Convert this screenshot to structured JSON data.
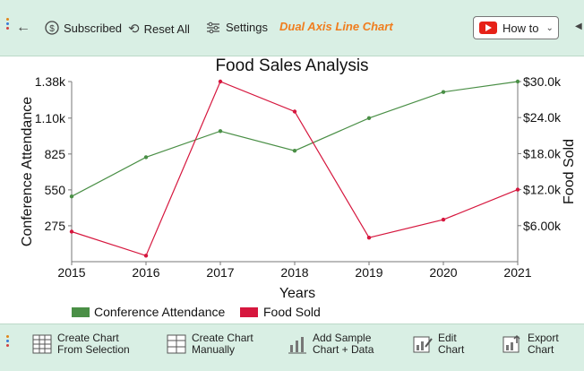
{
  "toolbar": {
    "subscribed_label": "Subscribed",
    "reset_label": "Reset All",
    "settings_label": "Settings",
    "title": "Dual Axis Line Chart",
    "howto_label": "How to"
  },
  "bottom_toolbar": {
    "create_from_selection": [
      "Create Chart",
      "From Selection"
    ],
    "create_manually": [
      "Create Chart",
      "Manually"
    ],
    "add_sample": [
      "Add Sample",
      "Chart + Data"
    ],
    "edit_chart": [
      "Edit",
      "Chart"
    ],
    "export_chart": [
      "Export",
      "Chart"
    ]
  },
  "colors": {
    "toolbar_bg": "#d9efe4",
    "title_orange": "#f07d1e",
    "series_attendance": "#4a8f46",
    "series_food": "#d6173e"
  },
  "chart_data": {
    "type": "line",
    "title": "Food Sales Analysis",
    "xlabel": "Years",
    "ylabel": "Conference Attendance",
    "y2label": "Food Sold",
    "x": [
      "2015",
      "2016",
      "2017",
      "2018",
      "2019",
      "2020",
      "2021"
    ],
    "series": [
      {
        "name": "Conference Attendance",
        "axis": "left",
        "values": [
          500,
          800,
          1000,
          850,
          1100,
          1300,
          1380
        ]
      },
      {
        "name": "Food Sold",
        "axis": "right",
        "values": [
          5000,
          1000,
          30000,
          25000,
          4000,
          7000,
          12000
        ]
      }
    ],
    "ylim": [
      0,
      1380
    ],
    "yticks": [
      "275",
      "550",
      "825",
      "1.10k",
      "1.38k"
    ],
    "yticks_values": [
      275,
      550,
      825,
      1100,
      1380
    ],
    "y2lim": [
      0,
      30000
    ],
    "y2ticks": [
      "$6.00k",
      "$12.0k",
      "$18.0k",
      "$24.0k",
      "$30.0k"
    ],
    "y2ticks_values": [
      6000,
      12000,
      18000,
      24000,
      30000
    ],
    "legend_position": "bottom-left",
    "grid": false
  }
}
